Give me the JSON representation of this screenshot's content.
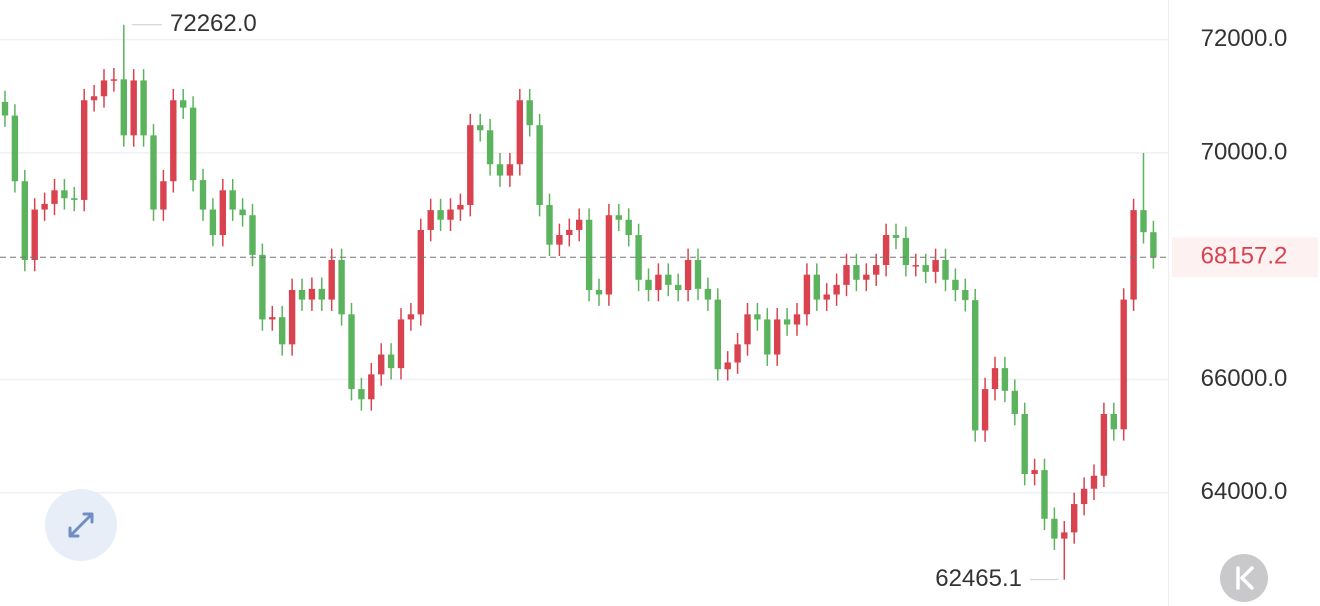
{
  "chart_data": {
    "type": "candlestick",
    "ylim": [
      62000,
      72700
    ],
    "yticks": [
      {
        "value": 64000,
        "label": "64000.0"
      },
      {
        "value": 66000,
        "label": "66000.0"
      },
      {
        "value": 70000,
        "label": "70000.0"
      },
      {
        "value": 72000,
        "label": "72000.0"
      }
    ],
    "grid": true,
    "up_color": "#d9434f",
    "down_color": "#5cb35e",
    "last_price": 68157.2,
    "high_annotation": {
      "value": 72262,
      "label": "72262.0"
    },
    "low_annotation": {
      "value": 62465.1,
      "label": "62465.1"
    },
    "open": [
      70900,
      70660,
      69500,
      68110,
      69000,
      69100,
      69340,
      69200,
      69170,
      70930,
      71000,
      71280,
      71300,
      70310,
      71280,
      70310,
      69000,
      69500,
      70930,
      70800,
      69520,
      69000,
      68550,
      69340,
      69000,
      68900,
      68200,
      67060,
      67100,
      66620,
      67580,
      67410,
      67600,
      67410,
      68110,
      67150,
      65830,
      65650,
      66090,
      66440,
      66200,
      67060,
      67150,
      68640,
      68990,
      68820,
      69000,
      69080,
      70490,
      70400,
      69800,
      69600,
      69800,
      70930,
      70490,
      69080,
      68380,
      68550,
      68640,
      68820,
      67580,
      67500,
      68900,
      68820,
      68550,
      67760,
      67580,
      67850,
      67670,
      67580,
      68110,
      67600,
      67410,
      66180,
      66300,
      66620,
      67150,
      67060,
      66440,
      67060,
      66970,
      67150,
      67850,
      67410,
      67500,
      67670,
      68020,
      67760,
      67850,
      68020,
      68550,
      68500,
      68020,
      68020,
      67900,
      68110,
      67760,
      67580,
      67400,
      65100,
      65830,
      66200,
      65800,
      65390,
      64330,
      64400,
      63540,
      63190,
      63300,
      63800,
      64070,
      64300,
      65390,
      65120,
      67410,
      68990,
      68600
    ],
    "high": [
      71100,
      70860,
      69700,
      69200,
      69300,
      69540,
      69540,
      69400,
      71130,
      71200,
      71480,
      71500,
      72262,
      71480,
      71480,
      70510,
      69700,
      71130,
      71130,
      71000,
      69720,
      69200,
      69540,
      69540,
      69200,
      69100,
      68400,
      67300,
      67300,
      67780,
      67780,
      67800,
      67800,
      68310,
      68310,
      67350,
      66030,
      66290,
      66640,
      66640,
      67260,
      67350,
      68840,
      69190,
      69190,
      69200,
      69280,
      70690,
      70690,
      70600,
      70000,
      70000,
      71130,
      71130,
      70690,
      69280,
      68750,
      68840,
      69020,
      69020,
      67780,
      69100,
      69100,
      69020,
      68750,
      67960,
      68050,
      68050,
      67870,
      68310,
      68310,
      67800,
      67610,
      66500,
      66820,
      67350,
      67350,
      67260,
      67260,
      67260,
      67350,
      68050,
      68050,
      67700,
      67870,
      68220,
      68220,
      68050,
      68220,
      68750,
      68750,
      68700,
      68220,
      68220,
      68310,
      68310,
      67960,
      67780,
      67600,
      66030,
      66400,
      66400,
      66000,
      65590,
      64600,
      64600,
      63740,
      63500,
      64000,
      64270,
      64500,
      65590,
      65590,
      67610,
      69190,
      70000,
      68800
    ],
    "low": [
      70460,
      69300,
      67910,
      67910,
      68800,
      68900,
      69000,
      68970,
      68970,
      70730,
      70800,
      71080,
      70110,
      70110,
      70110,
      68800,
      68800,
      69300,
      70600,
      69320,
      68800,
      68350,
      68350,
      68800,
      68700,
      68000,
      66860,
      66860,
      66420,
      66420,
      67210,
      67210,
      67210,
      67210,
      66950,
      65630,
      65450,
      65450,
      65890,
      66000,
      66000,
      66860,
      66950,
      68440,
      68620,
      68620,
      68800,
      68880,
      70200,
      69600,
      69400,
      69400,
      69600,
      70290,
      68880,
      68180,
      68180,
      68350,
      68440,
      67380,
      67300,
      67300,
      68620,
      68350,
      67560,
      67380,
      67380,
      67470,
      67380,
      67380,
      67400,
      67210,
      65980,
      65980,
      66100,
      66420,
      66860,
      66240,
      66240,
      66770,
      66770,
      66950,
      67210,
      67210,
      67300,
      67470,
      67560,
      67560,
      67650,
      67820,
      68300,
      67820,
      67820,
      67700,
      67700,
      67560,
      67380,
      67200,
      64900,
      64900,
      65630,
      65600,
      65190,
      64130,
      64130,
      63340,
      62990,
      62465.1,
      63100,
      63600,
      63870,
      64100,
      64920,
      64920,
      67210,
      68400,
      67957.2
    ],
    "close": [
      70660,
      69500,
      68110,
      69000,
      69100,
      69340,
      69200,
      69170,
      70930,
      71000,
      71280,
      71300,
      70310,
      71280,
      70310,
      69000,
      69500,
      70930,
      70800,
      69520,
      69000,
      68550,
      69340,
      69000,
      68900,
      68200,
      67060,
      67100,
      66620,
      67580,
      67410,
      67600,
      67410,
      68110,
      67150,
      65830,
      65650,
      66090,
      66440,
      66200,
      67060,
      67150,
      68640,
      68990,
      68820,
      69000,
      69080,
      70490,
      70400,
      69800,
      69600,
      69800,
      70930,
      70490,
      69080,
      68380,
      68550,
      68640,
      68820,
      67580,
      67500,
      68900,
      68820,
      68550,
      67760,
      67580,
      67850,
      67670,
      67580,
      68110,
      67600,
      67410,
      66180,
      66300,
      66620,
      67150,
      67060,
      66440,
      67060,
      66970,
      67150,
      67850,
      67410,
      67500,
      67670,
      68020,
      67760,
      67850,
      68020,
      68550,
      68500,
      68020,
      68020,
      67900,
      68110,
      67760,
      67580,
      67400,
      65100,
      65830,
      66200,
      65800,
      65390,
      64330,
      64400,
      63540,
      63190,
      63300,
      63800,
      64070,
      64300,
      65390,
      65120,
      67410,
      68990,
      68600,
      68157.2
    ]
  }
}
